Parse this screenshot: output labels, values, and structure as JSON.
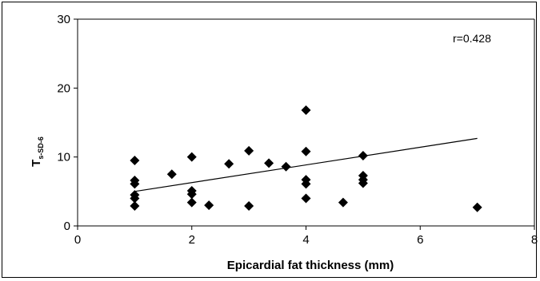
{
  "chart_data": {
    "type": "scatter",
    "title": "",
    "xlabel": "Epicardial fat thickness (mm)",
    "ylabel_main": "T",
    "ylabel_sub": "s-SD-6",
    "xlim": [
      0,
      8
    ],
    "ylim": [
      0,
      30
    ],
    "xticks": [
      0,
      2,
      4,
      6,
      8
    ],
    "yticks": [
      0,
      10,
      20,
      30
    ],
    "grid": false,
    "legend": "none",
    "marker": "diamond",
    "marker_color": "#000000",
    "annotation": "r=0.428",
    "points": [
      {
        "x": 1,
        "y": 9.5
      },
      {
        "x": 1,
        "y": 6.6
      },
      {
        "x": 1,
        "y": 6.1
      },
      {
        "x": 1,
        "y": 4.5
      },
      {
        "x": 1,
        "y": 4.0
      },
      {
        "x": 1,
        "y": 2.9
      },
      {
        "x": 1.65,
        "y": 7.5
      },
      {
        "x": 2,
        "y": 10.0
      },
      {
        "x": 2,
        "y": 5.1
      },
      {
        "x": 2,
        "y": 4.6
      },
      {
        "x": 2,
        "y": 3.4
      },
      {
        "x": 2.3,
        "y": 3.0
      },
      {
        "x": 2.65,
        "y": 9.0
      },
      {
        "x": 3,
        "y": 10.9
      },
      {
        "x": 3,
        "y": 2.9
      },
      {
        "x": 3.35,
        "y": 9.1
      },
      {
        "x": 3.65,
        "y": 8.6
      },
      {
        "x": 4,
        "y": 16.8
      },
      {
        "x": 4,
        "y": 10.8
      },
      {
        "x": 4,
        "y": 6.7
      },
      {
        "x": 4,
        "y": 6.1
      },
      {
        "x": 4,
        "y": 4.0
      },
      {
        "x": 4.65,
        "y": 3.4
      },
      {
        "x": 5,
        "y": 10.2
      },
      {
        "x": 5,
        "y": 7.3
      },
      {
        "x": 5,
        "y": 6.7
      },
      {
        "x": 5,
        "y": 6.2
      },
      {
        "x": 7,
        "y": 2.7
      }
    ],
    "trendline": {
      "x": [
        1,
        7
      ],
      "y": [
        5.0,
        12.7
      ]
    }
  }
}
